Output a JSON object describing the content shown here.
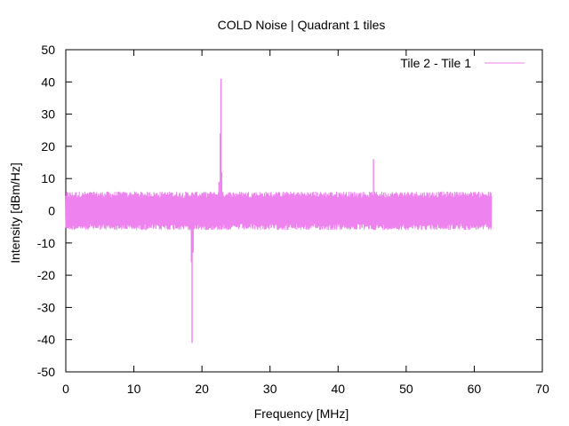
{
  "chart_data": {
    "type": "line",
    "title": "COLD Noise | Quadrant 1 tiles",
    "xlabel": "Frequency [MHz]",
    "ylabel": "Intensity [dBm/Hz]",
    "xlim": [
      0,
      70
    ],
    "ylim": [
      -50,
      50
    ],
    "xticks": [
      0,
      10,
      20,
      30,
      40,
      50,
      60,
      70
    ],
    "yticks": [
      -50,
      -40,
      -30,
      -20,
      -10,
      0,
      10,
      20,
      30,
      40,
      50
    ],
    "grid": false,
    "legend_position": "top-right",
    "series": [
      {
        "name": "Tile 2 - Tile 1",
        "color": "#ee82ee",
        "x_range": [
          0,
          62.5
        ],
        "baseline_band": [
          -4,
          4
        ],
        "envelope_peaks": [
          -6,
          6
        ],
        "features": [
          {
            "x": 17.8,
            "y": -2
          },
          {
            "x": 18.2,
            "y": -6
          },
          {
            "x": 18.45,
            "y": -16
          },
          {
            "x": 18.55,
            "y": -41
          },
          {
            "x": 18.7,
            "y": -13
          },
          {
            "x": 19.0,
            "y": -4
          },
          {
            "x": 22.0,
            "y": 3
          },
          {
            "x": 22.5,
            "y": 9
          },
          {
            "x": 22.7,
            "y": 24
          },
          {
            "x": 22.8,
            "y": 41
          },
          {
            "x": 22.9,
            "y": 12
          },
          {
            "x": 23.2,
            "y": 4
          },
          {
            "x": 45.2,
            "y": 16
          }
        ]
      }
    ]
  }
}
